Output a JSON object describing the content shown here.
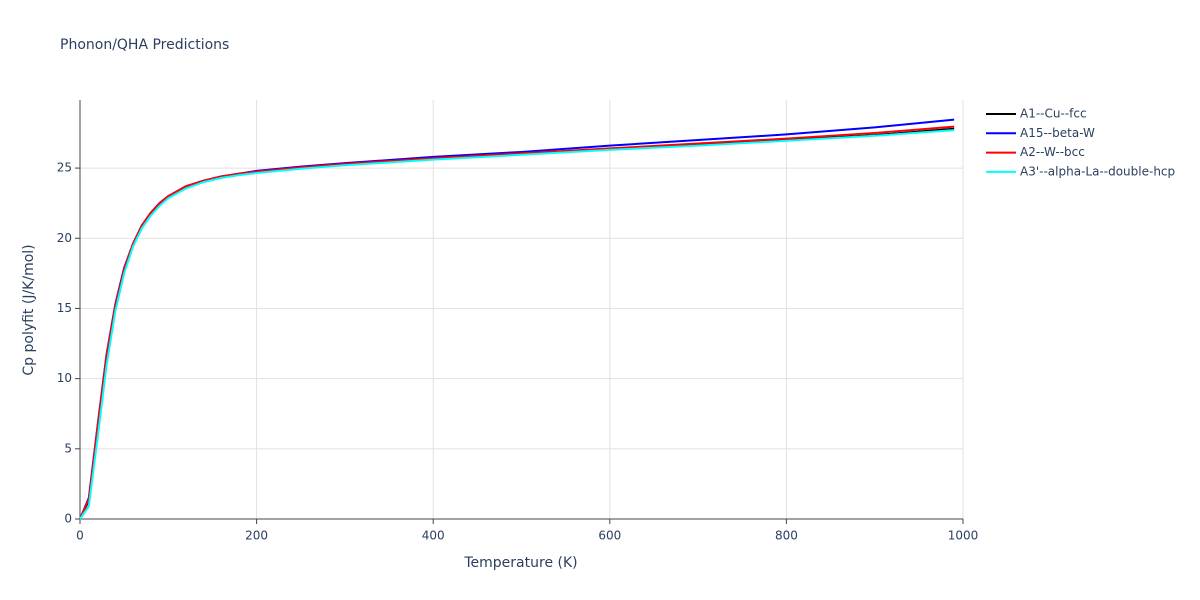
{
  "chart_data": {
    "type": "line",
    "title": "Phonon/QHA Predictions",
    "x_label": "Temperature (K)",
    "y_label": "Cp polyfit (J/K/mol)",
    "x": [
      0,
      10,
      20,
      30,
      40,
      50,
      60,
      70,
      80,
      90,
      100,
      120,
      140,
      160,
      180,
      200,
      250,
      300,
      400,
      500,
      600,
      700,
      800,
      900,
      990
    ],
    "series": [
      {
        "name": "A1--Cu--fcc",
        "color": "#000000",
        "values": [
          0,
          1.3,
          6.5,
          11.5,
          15.2,
          17.8,
          19.6,
          20.9,
          21.8,
          22.5,
          23.0,
          23.7,
          24.1,
          24.4,
          24.6,
          24.75,
          25.05,
          25.3,
          25.7,
          26.0,
          26.35,
          26.65,
          27.0,
          27.35,
          27.8
        ]
      },
      {
        "name": "A15--beta-W",
        "color": "#0000ff",
        "values": [
          0,
          1.5,
          6.7,
          11.7,
          15.3,
          17.9,
          19.6,
          20.9,
          21.8,
          22.5,
          23.0,
          23.7,
          24.1,
          24.4,
          24.6,
          24.8,
          25.1,
          25.35,
          25.8,
          26.15,
          26.6,
          27.0,
          27.4,
          27.9,
          28.45
        ]
      },
      {
        "name": "A2--W--bcc",
        "color": "#ff0000",
        "values": [
          0,
          1.4,
          6.6,
          11.6,
          15.2,
          17.8,
          19.6,
          20.9,
          21.8,
          22.5,
          23.0,
          23.7,
          24.1,
          24.4,
          24.6,
          24.75,
          25.05,
          25.3,
          25.7,
          26.05,
          26.4,
          26.75,
          27.1,
          27.5,
          27.95
        ]
      },
      {
        "name": "A3'--alpha-La--double-hcp",
        "color": "#00ffff",
        "values": [
          0,
          0.9,
          5.8,
          10.9,
          14.8,
          17.5,
          19.4,
          20.7,
          21.6,
          22.3,
          22.85,
          23.55,
          24.0,
          24.3,
          24.5,
          24.65,
          24.95,
          25.2,
          25.6,
          25.95,
          26.3,
          26.6,
          26.95,
          27.3,
          27.7
        ]
      }
    ],
    "xlim": [
      0,
      1000
    ],
    "xticks": [
      0,
      200,
      400,
      600,
      800,
      1000
    ],
    "ylim": [
      0,
      29.85
    ],
    "yticks": [
      0,
      5,
      10,
      15,
      20,
      25
    ],
    "grid": true,
    "legend": "right"
  }
}
